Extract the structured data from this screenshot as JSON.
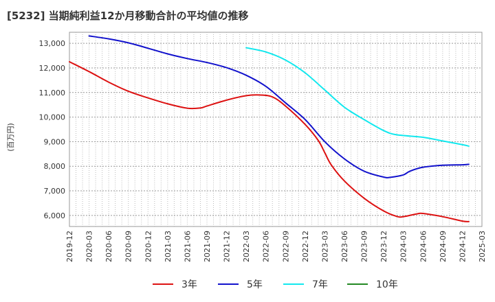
{
  "chart_data": {
    "type": "line",
    "title": "[5232]  当期純利益12か月移動合計の平均値の推移",
    "ylabel": "(百万円)",
    "xlabel": "",
    "ylim": [
      5550,
      13450
    ],
    "yticks": [
      6000,
      7000,
      8000,
      9000,
      10000,
      11000,
      12000,
      13000
    ],
    "ytick_labels": [
      "6,000",
      "7,000",
      "8,000",
      "9,000",
      "10,000",
      "11,000",
      "12,000",
      "13,000"
    ],
    "x_range": [
      "2019-12",
      "2025-03"
    ],
    "xticks": [
      "2019-12",
      "2020-03",
      "2020-06",
      "2020-09",
      "2020-12",
      "2021-03",
      "2021-06",
      "2021-09",
      "2021-12",
      "2022-03",
      "2022-06",
      "2022-09",
      "2022-12",
      "2023-03",
      "2023-06",
      "2023-09",
      "2023-12",
      "2024-03",
      "2024-06",
      "2024-09",
      "2024-12",
      "2025-03"
    ],
    "grid": true,
    "legend_position": "bottom",
    "series": [
      {
        "name": "3年",
        "color": "#dd1111",
        "points": [
          [
            "2019-12",
            12250
          ],
          [
            "2020-03",
            11850
          ],
          [
            "2020-06",
            11420
          ],
          [
            "2020-09",
            11050
          ],
          [
            "2020-12",
            10780
          ],
          [
            "2021-03",
            10540
          ],
          [
            "2021-06",
            10360
          ],
          [
            "2021-08",
            10370
          ],
          [
            "2021-09",
            10450
          ],
          [
            "2021-12",
            10690
          ],
          [
            "2022-03",
            10870
          ],
          [
            "2022-05",
            10900
          ],
          [
            "2022-07",
            10820
          ],
          [
            "2022-09",
            10450
          ],
          [
            "2022-12",
            9700
          ],
          [
            "2023-02",
            9050
          ],
          [
            "2023-03",
            8550
          ],
          [
            "2023-04",
            8050
          ],
          [
            "2023-06",
            7400
          ],
          [
            "2023-09",
            6700
          ],
          [
            "2023-12",
            6180
          ],
          [
            "2024-02",
            5960
          ],
          [
            "2024-03",
            5950
          ],
          [
            "2024-05",
            6060
          ],
          [
            "2024-06",
            6080
          ],
          [
            "2024-09",
            5950
          ],
          [
            "2024-12",
            5770
          ],
          [
            "2025-01",
            5750
          ]
        ]
      },
      {
        "name": "5年",
        "color": "#1111cc",
        "points": [
          [
            "2020-03",
            13300
          ],
          [
            "2020-06",
            13180
          ],
          [
            "2020-09",
            13020
          ],
          [
            "2020-12",
            12800
          ],
          [
            "2021-03",
            12570
          ],
          [
            "2021-06",
            12380
          ],
          [
            "2021-09",
            12220
          ],
          [
            "2021-12",
            12010
          ],
          [
            "2022-03",
            11700
          ],
          [
            "2022-06",
            11250
          ],
          [
            "2022-09",
            10580
          ],
          [
            "2022-12",
            9900
          ],
          [
            "2023-03",
            9000
          ],
          [
            "2023-06",
            8300
          ],
          [
            "2023-09",
            7800
          ],
          [
            "2023-12",
            7560
          ],
          [
            "2024-01",
            7550
          ],
          [
            "2024-03",
            7650
          ],
          [
            "2024-04",
            7800
          ],
          [
            "2024-06",
            7960
          ],
          [
            "2024-09",
            8040
          ],
          [
            "2024-12",
            8060
          ],
          [
            "2025-01",
            8080
          ]
        ]
      },
      {
        "name": "7年",
        "color": "#11e8ee",
        "points": [
          [
            "2022-03",
            12820
          ],
          [
            "2022-06",
            12650
          ],
          [
            "2022-09",
            12320
          ],
          [
            "2022-12",
            11800
          ],
          [
            "2023-03",
            11100
          ],
          [
            "2023-06",
            10400
          ],
          [
            "2023-09",
            9900
          ],
          [
            "2023-12",
            9450
          ],
          [
            "2024-02",
            9280
          ],
          [
            "2024-06",
            9180
          ],
          [
            "2024-09",
            9030
          ],
          [
            "2024-12",
            8880
          ],
          [
            "2025-01",
            8820
          ]
        ]
      },
      {
        "name": "10年",
        "color": "#228822",
        "points": []
      }
    ]
  }
}
